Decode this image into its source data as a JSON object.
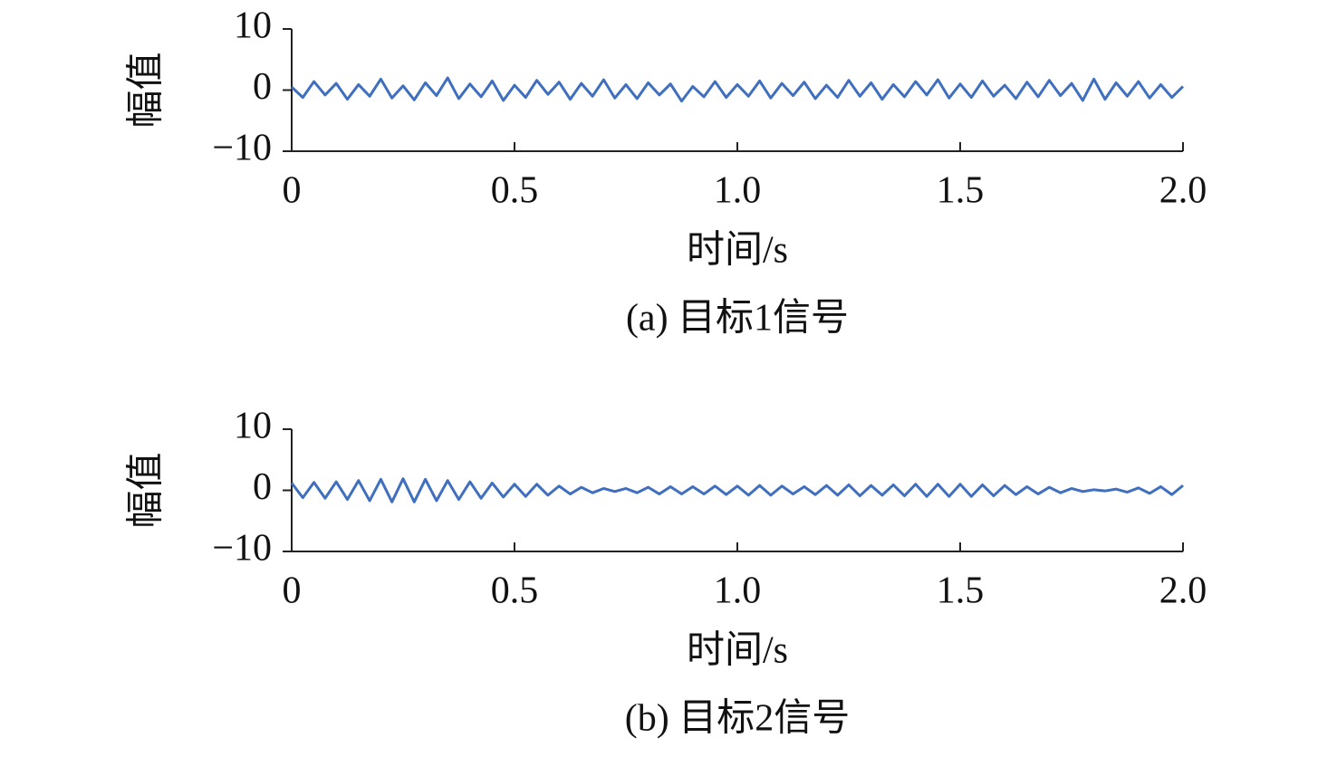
{
  "chart_data": [
    {
      "type": "line",
      "title": "(a) 目标1信号",
      "xlabel": "时间/s",
      "ylabel": "幅值",
      "color": "#3f6fbe",
      "x": [
        0,
        0.025,
        0.05,
        0.075,
        0.1,
        0.125,
        0.15,
        0.175,
        0.2,
        0.225,
        0.25,
        0.275,
        0.3,
        0.325,
        0.35,
        0.375,
        0.4,
        0.425,
        0.45,
        0.475,
        0.5,
        0.525,
        0.55,
        0.575,
        0.6,
        0.625,
        0.65,
        0.675,
        0.7,
        0.725,
        0.75,
        0.775,
        0.8,
        0.825,
        0.85,
        0.875,
        0.9,
        0.925,
        0.95,
        0.975,
        1,
        1.025,
        1.05,
        1.075,
        1.1,
        1.125,
        1.15,
        1.175,
        1.2,
        1.225,
        1.25,
        1.275,
        1.3,
        1.325,
        1.35,
        1.375,
        1.4,
        1.425,
        1.45,
        1.475,
        1.5,
        1.525,
        1.55,
        1.575,
        1.6,
        1.625,
        1.65,
        1.675,
        1.7,
        1.725,
        1.75,
        1.775,
        1.8,
        1.825,
        1.85,
        1.875,
        1.9,
        1.925,
        1.95,
        1.975,
        2
      ],
      "values": [
        0.5,
        -1.2,
        1.4,
        -0.8,
        1.1,
        -1.5,
        0.9,
        -1.0,
        1.8,
        -1.3,
        0.7,
        -1.6,
        1.2,
        -0.9,
        2.0,
        -1.4,
        1.0,
        -1.1,
        1.5,
        -1.7,
        0.8,
        -1.2,
        1.6,
        -0.7,
        1.3,
        -1.5,
        1.1,
        -1.0,
        1.7,
        -1.3,
        0.9,
        -1.4,
        1.2,
        -0.8,
        1.0,
        -1.8,
        0.6,
        -1.1,
        1.4,
        -1.2,
        0.9,
        -1.0,
        1.5,
        -1.3,
        1.1,
        -0.9,
        1.3,
        -1.4,
        0.8,
        -1.2,
        1.6,
        -1.0,
        1.2,
        -1.5,
        0.9,
        -1.1,
        1.4,
        -0.8,
        1.7,
        -1.3,
        1.0,
        -1.2,
        1.5,
        -1.0,
        0.8,
        -1.4,
        1.3,
        -1.1,
        1.6,
        -0.9,
        1.1,
        -1.7,
        1.8,
        -1.5,
        1.2,
        -1.0,
        1.4,
        -1.3,
        0.9,
        -1.2,
        0.6
      ],
      "xlim": [
        0,
        2
      ],
      "xticks": [
        0,
        0.5,
        {
          "value": 1,
          "label": "1.0"
        },
        1.5,
        {
          "value": 2,
          "label": "2.0"
        }
      ],
      "ylim": [
        -10,
        10
      ],
      "yticks": [
        {
          "value": -10,
          "label": "−10"
        },
        0,
        10
      ]
    },
    {
      "type": "line",
      "title": "(b) 目标2信号",
      "xlabel": "时间/s",
      "ylabel": "幅值",
      "color": "#3f6fbe",
      "x": [
        0,
        0.025,
        0.05,
        0.075,
        0.1,
        0.125,
        0.15,
        0.175,
        0.2,
        0.225,
        0.25,
        0.275,
        0.3,
        0.325,
        0.35,
        0.375,
        0.4,
        0.425,
        0.45,
        0.475,
        0.5,
        0.525,
        0.55,
        0.575,
        0.6,
        0.625,
        0.65,
        0.675,
        0.7,
        0.725,
        0.75,
        0.775,
        0.8,
        0.825,
        0.85,
        0.875,
        0.9,
        0.925,
        0.95,
        0.975,
        1,
        1.025,
        1.05,
        1.075,
        1.1,
        1.125,
        1.15,
        1.175,
        1.2,
        1.225,
        1.25,
        1.275,
        1.3,
        1.325,
        1.35,
        1.375,
        1.4,
        1.425,
        1.45,
        1.475,
        1.5,
        1.525,
        1.55,
        1.575,
        1.6,
        1.625,
        1.65,
        1.675,
        1.7,
        1.725,
        1.75,
        1.775,
        1.8,
        1.825,
        1.85,
        1.875,
        1.9,
        1.925,
        1.95,
        1.975,
        2
      ],
      "values": [
        1.2,
        -1.2,
        1.3,
        -1.3,
        1.4,
        -1.5,
        1.6,
        -1.7,
        1.8,
        -1.9,
        1.9,
        -1.9,
        1.8,
        -1.7,
        1.6,
        -1.5,
        1.4,
        -1.3,
        1.2,
        -1.1,
        1.0,
        -1.0,
        1.0,
        -0.8,
        0.7,
        -0.6,
        0.5,
        -0.4,
        0.3,
        -0.2,
        0.3,
        -0.4,
        0.5,
        -0.6,
        0.6,
        -0.6,
        0.6,
        -0.6,
        0.7,
        -0.7,
        0.7,
        -0.8,
        0.8,
        -0.8,
        0.7,
        -0.6,
        0.6,
        -0.7,
        0.8,
        -0.8,
        0.9,
        -0.9,
        0.8,
        -0.8,
        0.9,
        -0.9,
        1.0,
        -1.0,
        1.0,
        -1.0,
        1.0,
        -1.0,
        0.9,
        -0.9,
        0.8,
        -0.7,
        0.6,
        -0.6,
        0.5,
        -0.4,
        0.3,
        -0.2,
        0.1,
        -0.1,
        0.2,
        -0.3,
        0.4,
        -0.5,
        0.6,
        -0.7,
        0.8
      ],
      "xlim": [
        0,
        2
      ],
      "xticks": [
        0,
        0.5,
        {
          "value": 1,
          "label": "1.0"
        },
        1.5,
        {
          "value": 2,
          "label": "2.0"
        }
      ],
      "ylim": [
        -10,
        10
      ],
      "yticks": [
        {
          "value": -10,
          "label": "−10"
        },
        0,
        10
      ]
    }
  ]
}
